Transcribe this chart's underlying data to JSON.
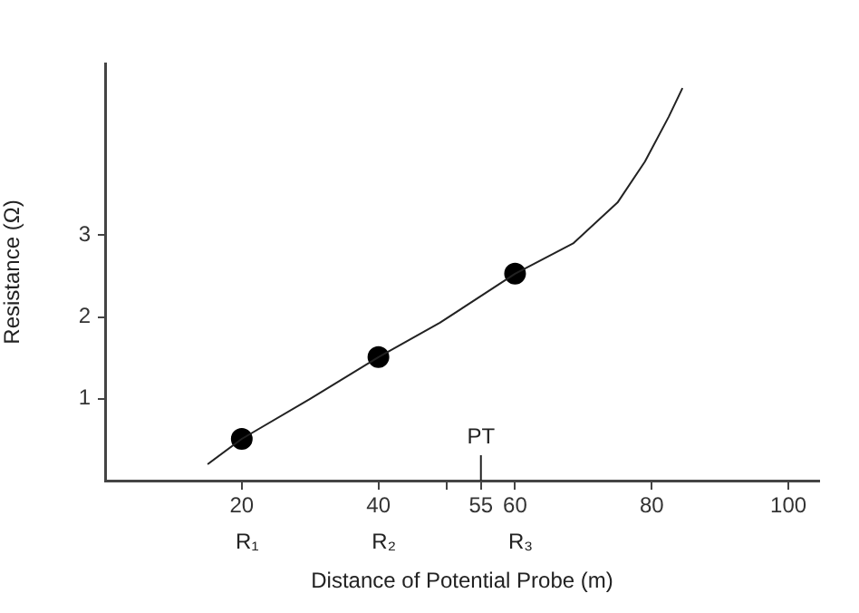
{
  "chart_data": {
    "type": "line",
    "xlabel": "Distance of Potential Probe (m)",
    "ylabel": "Resistance (Ω)",
    "series": [
      {
        "type": "line",
        "color": "#222222",
        "marker": "none",
        "x": [
          15,
          20,
          30,
          40,
          49,
          60,
          68.5,
          75,
          79,
          82.5,
          84.5
        ],
        "values": [
          0.2,
          0.51,
          1.0,
          1.51,
          1.93,
          2.53,
          2.9,
          3.4,
          3.9,
          4.45,
          4.8
        ]
      },
      {
        "type": "scatter",
        "color": "#000000",
        "marker": "circle",
        "x": [
          20,
          40,
          60
        ],
        "values": [
          0.51,
          1.51,
          2.53
        ]
      }
    ],
    "xlim": [
      0,
      104.5
    ],
    "xticks": [
      20,
      40,
      {
        "value": 50,
        "label": null
      },
      55,
      60,
      80,
      100
    ],
    "ylim": [
      0,
      5.1
    ],
    "yticks": [
      1,
      2,
      3
    ],
    "annotations": [
      "R₁",
      "R₂",
      "R₃",
      "PT"
    ],
    "grid": false,
    "legend": false
  }
}
